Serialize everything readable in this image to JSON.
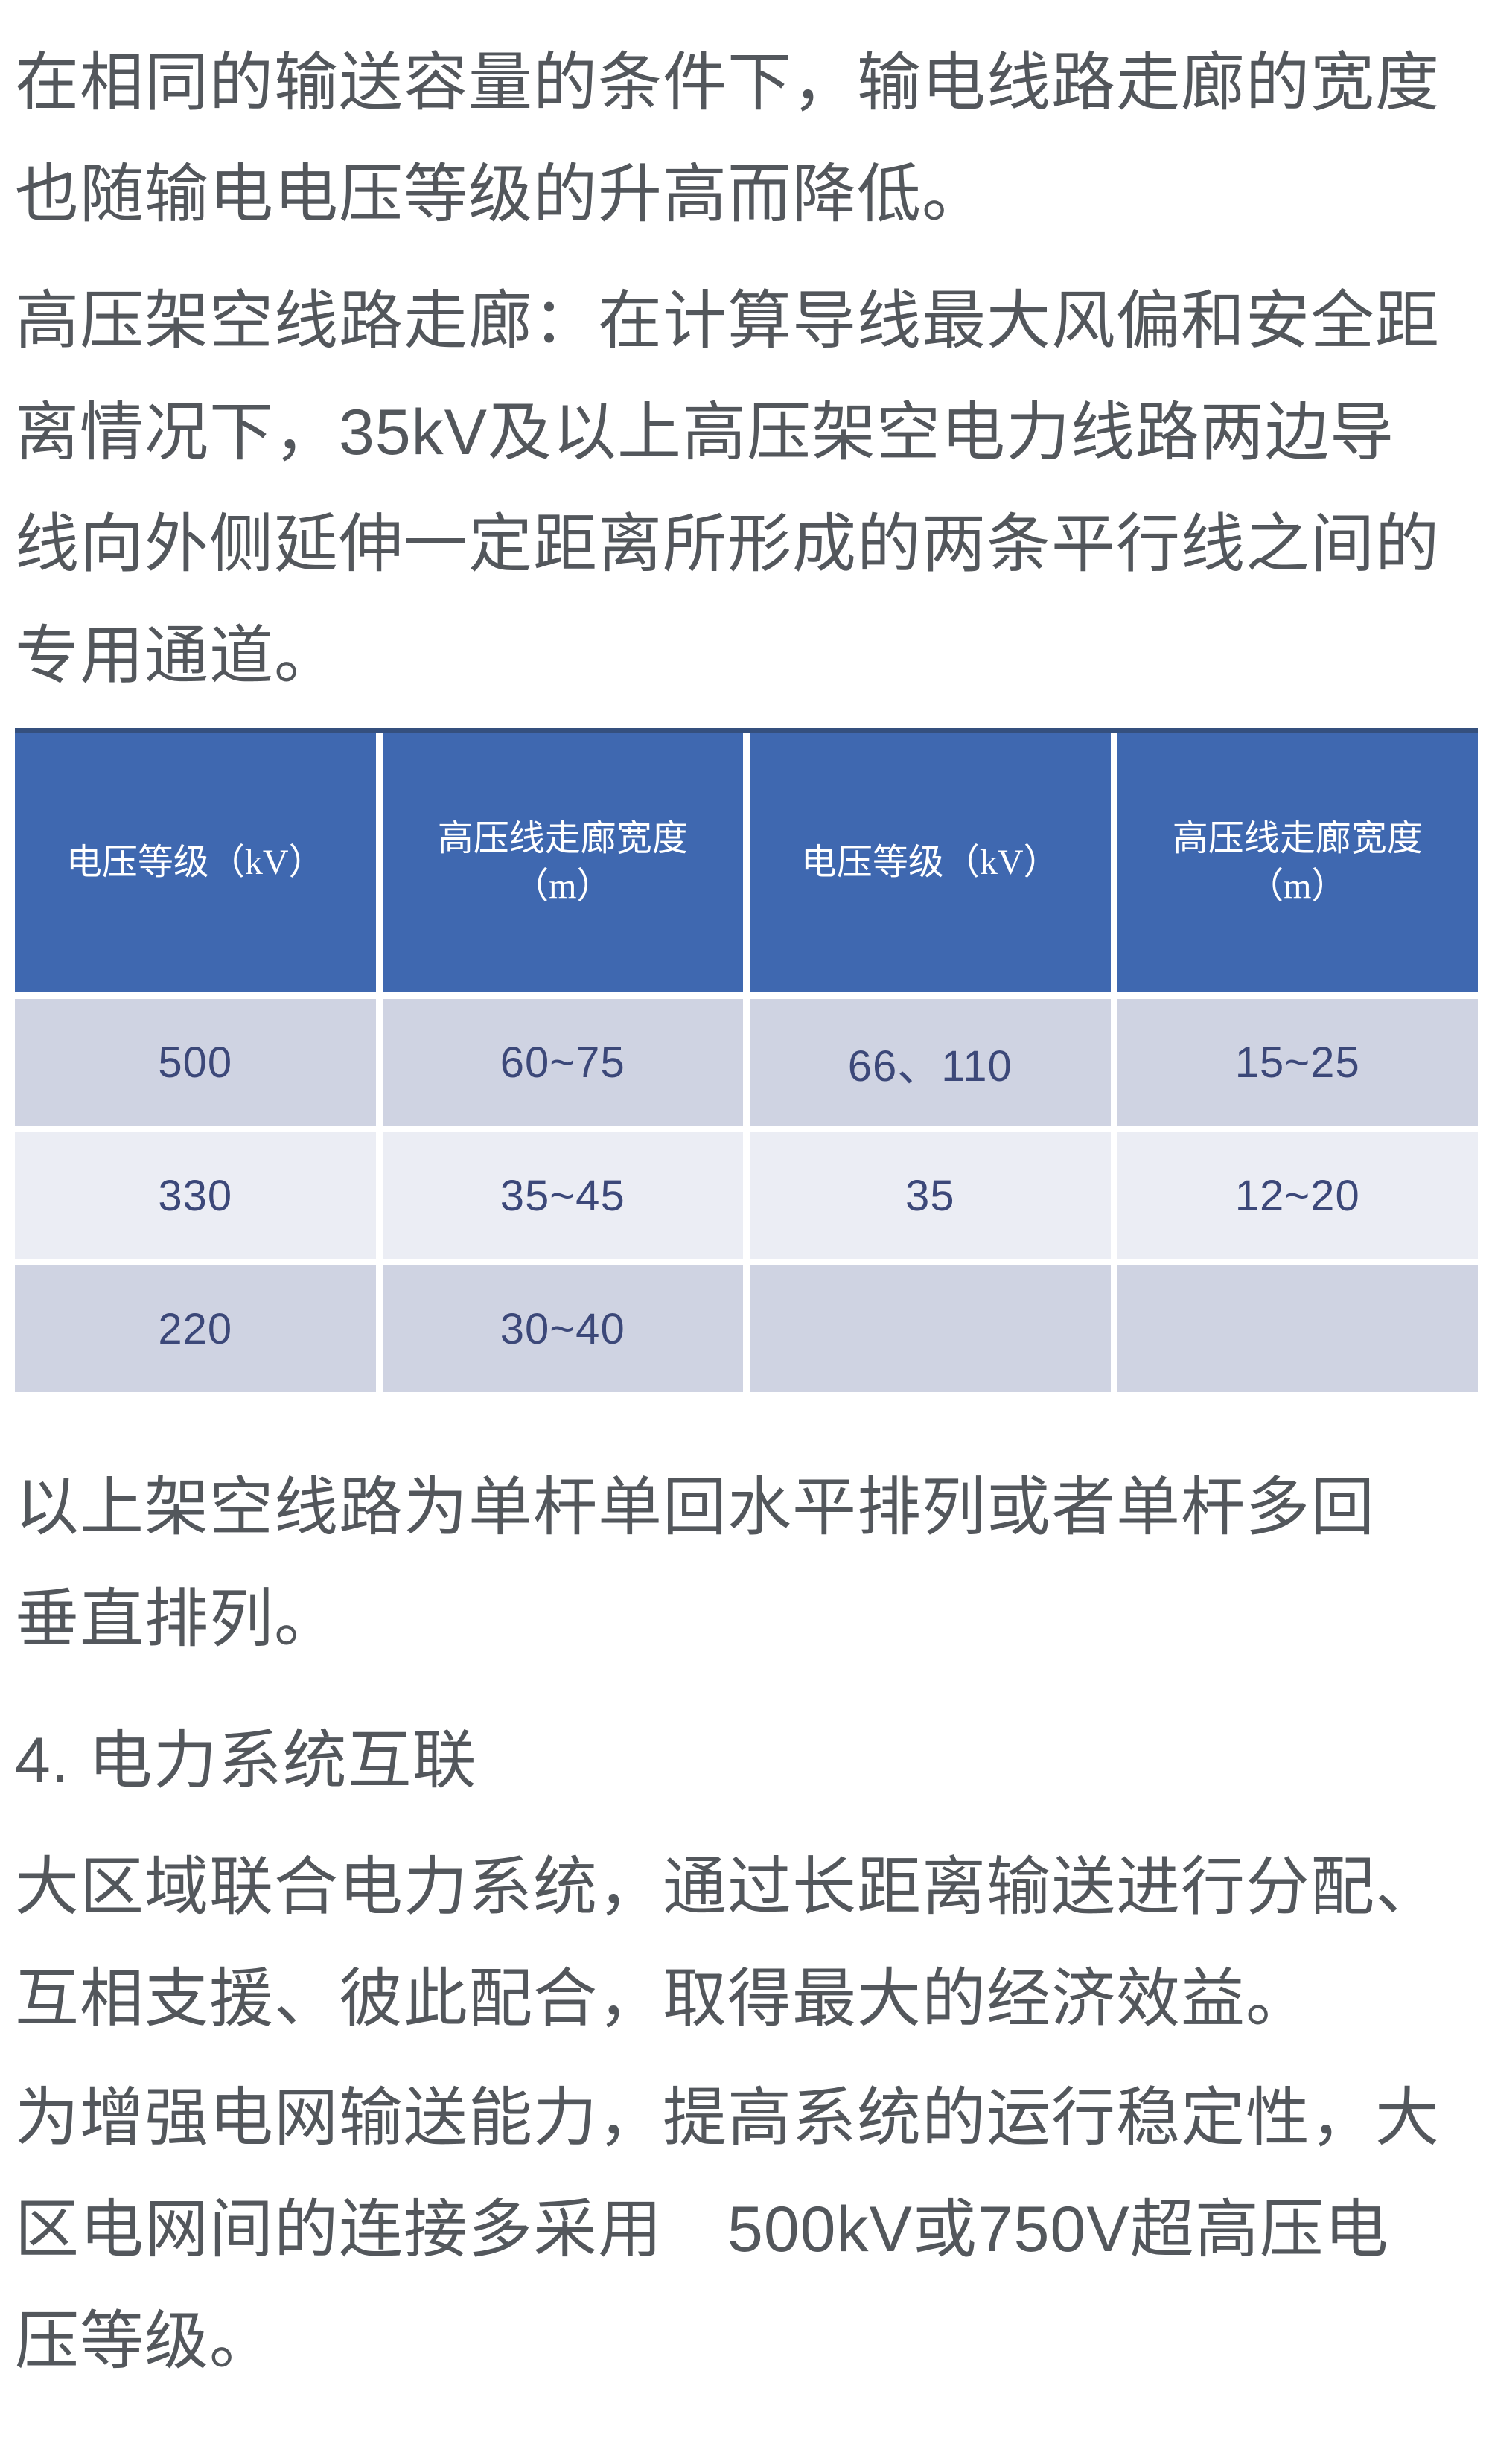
{
  "colors": {
    "page_bg": "#ffffff",
    "body_text": "#53575c",
    "table_header_bg": "#3f68b0",
    "table_header_text": "#ffffff",
    "table_header_top_border": "#35507e",
    "table_row_odd_bg": "#cfd3e2",
    "table_row_even_bg": "#ebedf4",
    "table_cell_text": "#3c4879"
  },
  "content": {
    "p1": {
      "lines": [
        "在相同的输送容量的条件下，输电线路走廊的宽度",
        "也随输电电压等级的升高而降低。"
      ]
    },
    "p2": {
      "lines": [
        "高压架空线路走廊：在计算导线最大风偏和安全距",
        "离情况下，35kV及以上高压架空电力线路两边导",
        "线向外侧延伸一定距离所形成的两条平行线之间的",
        "专用通道。"
      ]
    },
    "p3": {
      "lines": [
        "以上架空线路为单杆单回水平排列或者单杆多回",
        "垂直排列。"
      ]
    },
    "section_heading": "4. 电力系统互联",
    "p4": {
      "lines": [
        "大区域联合电力系统，通过长距离输送进行分配、",
        "互相支援、彼此配合，取得最大的经济效益。"
      ]
    },
    "p5": {
      "lines": [
        "为增强电网输送能力，提高系统的运行稳定性，大",
        "区电网间的连接多采用　500kV或750V超高压电",
        "压等级。"
      ]
    }
  },
  "table": {
    "headers": [
      {
        "line1": "电压等级（kV）",
        "line2": ""
      },
      {
        "line1": "高压线走廊宽度",
        "line2": "（m）"
      },
      {
        "line1": "电压等级（kV）",
        "line2": ""
      },
      {
        "line1": "高压线走廊宽度",
        "line2": "（m）"
      }
    ],
    "rows": [
      [
        "500",
        "60~75",
        "66、110",
        "15~25"
      ],
      [
        "330",
        "35~45",
        "35",
        "12~20"
      ],
      [
        "220",
        "30~40",
        "",
        ""
      ]
    ]
  }
}
